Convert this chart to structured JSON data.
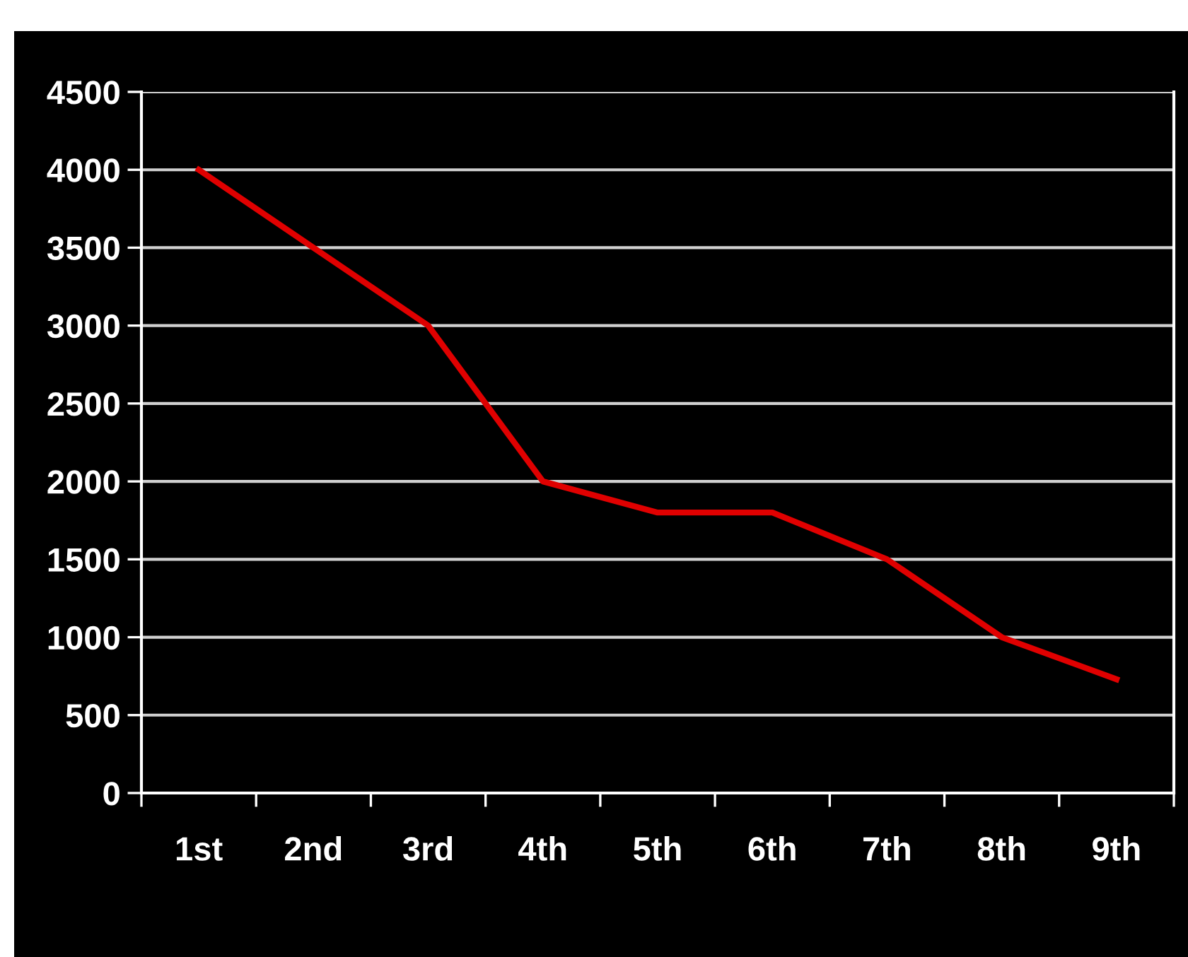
{
  "chart_data": {
    "type": "line",
    "categories": [
      "1st",
      "2nd",
      "3rd",
      "4th",
      "5th",
      "6th",
      "7th",
      "8th",
      "9th"
    ],
    "series": [
      {
        "color": "#e00000",
        "values": [
          4000,
          3500,
          3000,
          2000,
          1800,
          1800,
          1500,
          1000,
          730
        ]
      }
    ],
    "ylim": [
      0,
      4500
    ],
    "yticks": [
      0,
      500,
      1000,
      1500,
      2000,
      2500,
      3000,
      3500,
      4000,
      4500
    ],
    "grid": "y",
    "marker": "none",
    "line_style": "solid"
  }
}
